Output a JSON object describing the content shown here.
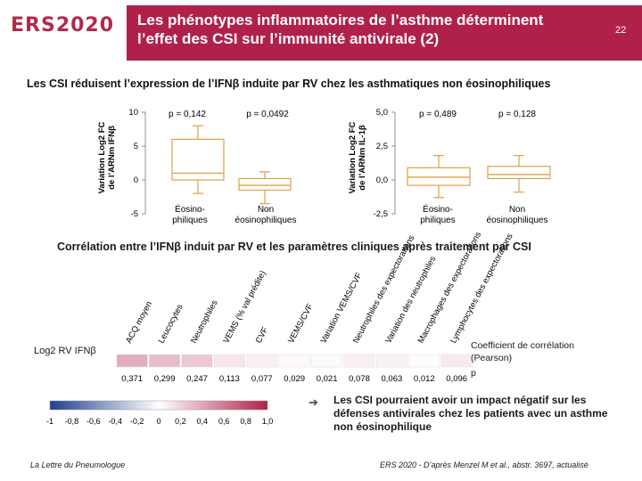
{
  "header": {
    "logo": "ERS2020",
    "title_line1": "Les phénotypes inflammatoires de l’asthme déterminent",
    "title_line2": "l’effet des CSI sur l’immunité antivirale (2)",
    "page_number": "22"
  },
  "subtitle": "Les CSI réduisent l’expression de l’IFNβ induite par RV chez les asthmatiques non éosinophiliques",
  "plot_left": {
    "ylabel_line1": "Variation Log2 FC",
    "ylabel_line2": "de l’ARNm IFNβ",
    "ticks": [
      "10",
      "5",
      "0",
      "-5"
    ],
    "tick_values": [
      10,
      5,
      0,
      -5
    ],
    "p_values": [
      "p = 0,142",
      "p = 0,0492"
    ],
    "groups": [
      {
        "line1": "Éosino-",
        "line2": "philiques",
        "min": -2.0,
        "q1": 0.0,
        "median": 1.0,
        "q3": 6.0,
        "max": 8.0
      },
      {
        "line1": "Non",
        "line2": "éosinophiliques",
        "min": -3.5,
        "q1": -1.5,
        "median": -0.8,
        "q3": 0.2,
        "max": 1.2
      }
    ]
  },
  "plot_right": {
    "ylabel_line1": "Variation Log2 FC",
    "ylabel_line2": "de l’ARNm IL-1β",
    "ticks": [
      "5,0",
      "2,5",
      "0,0",
      "-2,5"
    ],
    "tick_values": [
      5.0,
      2.5,
      0.0,
      -2.5
    ],
    "p_values": [
      "p = 0,489",
      "p = 0,128"
    ],
    "groups": [
      {
        "line1": "Éosino-",
        "line2": "philiques",
        "min": -1.3,
        "q1": -0.4,
        "median": 0.2,
        "q3": 0.9,
        "max": 1.8
      },
      {
        "line1": "Non",
        "line2": "éosinophiliques",
        "min": -0.9,
        "q1": 0.1,
        "median": 0.4,
        "q3": 1.0,
        "max": 1.8
      }
    ]
  },
  "section2_title": "Corrélation entre l’IFNβ induit par RV et les paramètres cliniques après traitement par CSI",
  "correlation": {
    "row_label": "Log2 RV IFNβ",
    "columns": [
      {
        "label": "ACQ moyen",
        "coef": "0,371",
        "value": 0.371
      },
      {
        "label": "Leucocytes",
        "coef": "0,299",
        "value": 0.299
      },
      {
        "label": "Neutrophiles",
        "coef": "0,247",
        "value": 0.247
      },
      {
        "label": "VEMS (% val prédite)",
        "coef": "0,113",
        "value": 0.113
      },
      {
        "label": "CVF",
        "coef": "0,077",
        "value": 0.077
      },
      {
        "label": "VEMS/CVF",
        "coef": "0,029",
        "value": 0.029
      },
      {
        "label": "Variation VEMS/CVF",
        "coef": "0,021",
        "value": 0.021
      },
      {
        "label": "Neutrophiles des expectorations",
        "coef": "0,078",
        "value": 0.078
      },
      {
        "label": "Variation des neutrophiles",
        "coef": "0,063",
        "value": 0.063
      },
      {
        "label": "Macrophages des expectorations",
        "coef": "0,012",
        "value": 0.012
      },
      {
        "label": "Lymphocytes des expectorations",
        "coef": "0,096",
        "value": 0.096
      }
    ],
    "scale_labels": [
      "-1",
      "-0,8",
      "-0,6",
      "-0,4",
      "-0,2",
      "0",
      "0,2",
      "0,4",
      "0,6",
      "0,8",
      "1,0"
    ],
    "scale_min": -1.0,
    "scale_max": 1.0,
    "legend_coef": "Coefficient de corrélation (Pearson)",
    "legend_p": "p",
    "colors": {
      "negative": "#1f3f8f",
      "zero": "#ffffff",
      "positive": "#b0214a"
    }
  },
  "conclusion": {
    "arrow": "➔",
    "text": "Les CSI pourraient avoir un impact négatif sur les défenses antivirales chez les patients avec un asthme non éosinophilique"
  },
  "footer": {
    "left": "La Lettre du Pneumologue",
    "right": "ERS 2020 - D’après Menzel M et al., abstr. 3697, actualisé"
  },
  "colors": {
    "accent": "#b0214a",
    "box_stroke": "#e0a048"
  }
}
